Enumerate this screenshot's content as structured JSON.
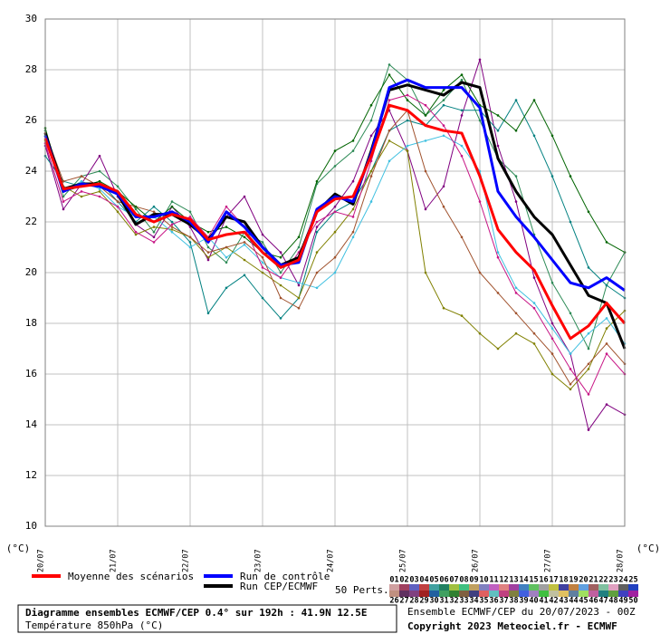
{
  "chart_data": {
    "type": "line",
    "title": "Diagramme ensembles ECMWF/CEP 0.4° sur 192h : 41.9N 12.5E",
    "subtitle": "Température 850hPa (°C)",
    "run_info": "Ensemble ECMWF/CEP du 20/07/2023 - 00Z",
    "copyright": "Copyright 2023 Meteociel.fr - ECMWF",
    "y_unit": "(°C)",
    "categories": [
      "20/07",
      null,
      null,
      null,
      "21/07",
      null,
      null,
      null,
      "22/07",
      null,
      null,
      null,
      "23/07",
      null,
      null,
      null,
      "24/07",
      null,
      null,
      null,
      "25/07",
      null,
      null,
      null,
      "26/07",
      null,
      null,
      null,
      "27/07",
      null,
      null,
      null,
      "28/07"
    ],
    "ylim": [
      10,
      30
    ],
    "yticks": [
      10,
      12,
      14,
      16,
      18,
      20,
      22,
      24,
      26,
      28,
      30
    ],
    "grid": true,
    "series": [
      {
        "name": "Run CEP/ECMWF",
        "color": "#000000",
        "values": [
          25.5,
          23.3,
          23.5,
          23.5,
          23.1,
          21.9,
          22.3,
          22.3,
          21.9,
          21.3,
          22.2,
          22.0,
          21.0,
          20.3,
          20.6,
          22.4,
          23.1,
          22.7,
          24.8,
          27.2,
          27.4,
          27.2,
          27.0,
          27.5,
          27.3,
          24.5,
          23.2,
          22.2,
          21.5,
          20.3,
          19.1,
          18.8,
          17.0
        ]
      },
      {
        "name": "Run de contrôle",
        "color": "#0000ff",
        "values": [
          25.4,
          23.2,
          23.5,
          23.4,
          23.1,
          22.2,
          22.2,
          22.4,
          22.0,
          21.2,
          22.4,
          21.8,
          21.0,
          20.3,
          20.4,
          22.5,
          23.0,
          22.8,
          24.7,
          27.3,
          27.6,
          27.3,
          27.3,
          27.3,
          26.5,
          23.2,
          22.2,
          21.4,
          20.5,
          19.6,
          19.4,
          19.8,
          19.3
        ]
      },
      {
        "name": "Moyenne des scénarios",
        "color": "#ff0000",
        "values": [
          25.3,
          23.3,
          23.4,
          23.5,
          23.2,
          22.3,
          22.0,
          22.3,
          22.1,
          21.3,
          21.5,
          21.6,
          20.8,
          20.2,
          20.5,
          22.4,
          22.9,
          23.0,
          24.6,
          26.6,
          26.4,
          25.8,
          25.6,
          25.5,
          23.8,
          21.7,
          20.8,
          20.1,
          18.7,
          17.4,
          17.9,
          18.8,
          18.0
        ]
      }
    ],
    "perturbations": [
      {
        "color": "#2e8b57",
        "values": [
          25.6,
          23.0,
          23.8,
          24.0,
          23.4,
          22.5,
          21.6,
          22.8,
          22.4,
          21.0,
          20.4,
          21.6,
          21.2,
          20.0,
          21.0,
          23.5,
          24.2,
          24.8,
          26.0,
          28.2,
          27.6,
          26.2,
          26.8,
          27.6,
          26.0,
          24.5,
          23.8,
          21.5,
          19.6,
          18.4,
          17.0,
          19.5,
          20.8
        ]
      },
      {
        "color": "#800080",
        "values": [
          25.0,
          22.5,
          23.5,
          24.6,
          23.0,
          21.9,
          21.4,
          22.6,
          21.8,
          20.5,
          22.2,
          23.0,
          21.5,
          20.8,
          19.5,
          21.8,
          22.6,
          23.6,
          25.4,
          26.4,
          24.8,
          22.5,
          23.4,
          26.2,
          28.4,
          25.0,
          22.8,
          19.8,
          18.0,
          16.8,
          13.8,
          14.8,
          14.4
        ]
      },
      {
        "color": "#008080",
        "values": [
          24.6,
          23.6,
          23.4,
          23.6,
          22.8,
          22.0,
          22.6,
          22.0,
          21.2,
          18.4,
          19.4,
          19.9,
          19.0,
          18.2,
          19.0,
          21.6,
          22.4,
          22.8,
          24.0,
          25.6,
          26.0,
          25.8,
          26.6,
          26.4,
          26.4,
          25.6,
          26.8,
          25.4,
          23.8,
          22.0,
          20.2,
          19.5,
          19.0
        ]
      },
      {
        "color": "#808000",
        "values": [
          25.2,
          23.4,
          23.0,
          23.2,
          22.4,
          21.5,
          21.8,
          21.7,
          21.4,
          20.6,
          21.0,
          20.5,
          20.0,
          19.5,
          19.0,
          20.8,
          21.6,
          22.5,
          24.0,
          25.2,
          24.8,
          20.0,
          18.6,
          18.3,
          17.6,
          17.0,
          17.6,
          17.2,
          16.0,
          15.4,
          16.2,
          17.8,
          18.5
        ]
      },
      {
        "color": "#40c0e0",
        "values": [
          25.4,
          23.2,
          23.6,
          23.3,
          22.6,
          22.2,
          22.2,
          21.6,
          21.0,
          21.4,
          20.6,
          21.1,
          20.4,
          19.8,
          19.6,
          19.4,
          20.0,
          21.4,
          22.8,
          24.4,
          25.0,
          25.2,
          25.4,
          25.0,
          24.0,
          20.8,
          19.4,
          18.8,
          17.8,
          16.8,
          17.6,
          18.2,
          17.2
        ]
      },
      {
        "color": "#a0522d",
        "values": [
          25.5,
          23.6,
          23.8,
          23.4,
          22.8,
          22.6,
          22.4,
          21.8,
          21.4,
          20.8,
          21.0,
          21.2,
          20.6,
          19.0,
          18.6,
          20.0,
          20.6,
          21.6,
          23.8,
          25.6,
          26.4,
          24.0,
          22.6,
          21.4,
          20.0,
          19.2,
          18.4,
          17.6,
          16.8,
          15.6,
          16.4,
          17.2,
          16.4
        ]
      },
      {
        "color": "#006400",
        "values": [
          25.7,
          23.2,
          23.4,
          23.6,
          23.2,
          22.6,
          22.0,
          22.6,
          22.0,
          21.6,
          21.8,
          21.4,
          20.8,
          20.6,
          21.4,
          23.6,
          24.8,
          25.2,
          26.6,
          27.8,
          26.8,
          26.2,
          27.2,
          27.8,
          26.6,
          26.2,
          25.6,
          26.8,
          25.4,
          23.8,
          22.4,
          21.2,
          20.8
        ]
      },
      {
        "color": "#c71585",
        "values": [
          25.1,
          22.8,
          23.2,
          23.0,
          22.6,
          21.6,
          21.2,
          21.9,
          22.2,
          21.4,
          22.6,
          21.8,
          20.2,
          19.8,
          20.8,
          22.0,
          22.4,
          22.2,
          24.4,
          26.8,
          27.0,
          26.6,
          25.8,
          24.6,
          22.8,
          20.6,
          19.2,
          18.6,
          17.4,
          16.2,
          15.2,
          16.8,
          16.0
        ]
      }
    ],
    "perturbation_count_label": "50 Perts.",
    "perturbation_legend": [
      {
        "label": "01",
        "color": "#d0a0a0"
      },
      {
        "label": "02",
        "color": "#a04060"
      },
      {
        "label": "03",
        "color": "#6060c0"
      },
      {
        "label": "04",
        "color": "#c04040"
      },
      {
        "label": "05",
        "color": "#40a0a0"
      },
      {
        "label": "06",
        "color": "#208060"
      },
      {
        "label": "07",
        "color": "#a0c040"
      },
      {
        "label": "08",
        "color": "#40c080"
      },
      {
        "label": "09",
        "color": "#c0a060"
      },
      {
        "label": "10",
        "color": "#8080c0"
      },
      {
        "label": "11",
        "color": "#c060c0"
      },
      {
        "label": "12",
        "color": "#e08080"
      },
      {
        "label": "13",
        "color": "#a040a0"
      },
      {
        "label": "14",
        "color": "#4080c0"
      },
      {
        "label": "15",
        "color": "#60c060"
      },
      {
        "label": "16",
        "color": "#a0a0a0"
      },
      {
        "label": "17",
        "color": "#c0c040"
      },
      {
        "label": "18",
        "color": "#4040a0"
      },
      {
        "label": "19",
        "color": "#c08040"
      },
      {
        "label": "20",
        "color": "#60a0e0"
      },
      {
        "label": "21",
        "color": "#a06060"
      },
      {
        "label": "22",
        "color": "#80c0a0"
      },
      {
        "label": "23",
        "color": "#e0a0c0"
      },
      {
        "label": "24",
        "color": "#606060"
      },
      {
        "label": "25",
        "color": "#2040c0"
      },
      {
        "label": "26",
        "color": "#c09080"
      },
      {
        "label": "27",
        "color": "#603060"
      },
      {
        "label": "28",
        "color": "#804080"
      },
      {
        "label": "29",
        "color": "#a02020"
      },
      {
        "label": "30",
        "color": "#2060a0"
      },
      {
        "label": "31",
        "color": "#40a060"
      },
      {
        "label": "32",
        "color": "#308030"
      },
      {
        "label": "33",
        "color": "#806040"
      },
      {
        "label": "34",
        "color": "#404080"
      },
      {
        "label": "35",
        "color": "#e06060"
      },
      {
        "label": "36",
        "color": "#60c0c0"
      },
      {
        "label": "37",
        "color": "#c04080"
      },
      {
        "label": "38",
        "color": "#808040"
      },
      {
        "label": "39",
        "color": "#4060e0"
      },
      {
        "label": "40",
        "color": "#a080c0"
      },
      {
        "label": "41",
        "color": "#40c040"
      },
      {
        "label": "42",
        "color": "#c0c0a0"
      },
      {
        "label": "43",
        "color": "#e0c060"
      },
      {
        "label": "44",
        "color": "#6080a0"
      },
      {
        "label": "45",
        "color": "#a0e060"
      },
      {
        "label": "46",
        "color": "#c060a0"
      },
      {
        "label": "47",
        "color": "#208080"
      },
      {
        "label": "48",
        "color": "#60a040"
      },
      {
        "label": "49",
        "color": "#4040c0"
      },
      {
        "label": "50",
        "color": "#a020a0"
      }
    ]
  }
}
